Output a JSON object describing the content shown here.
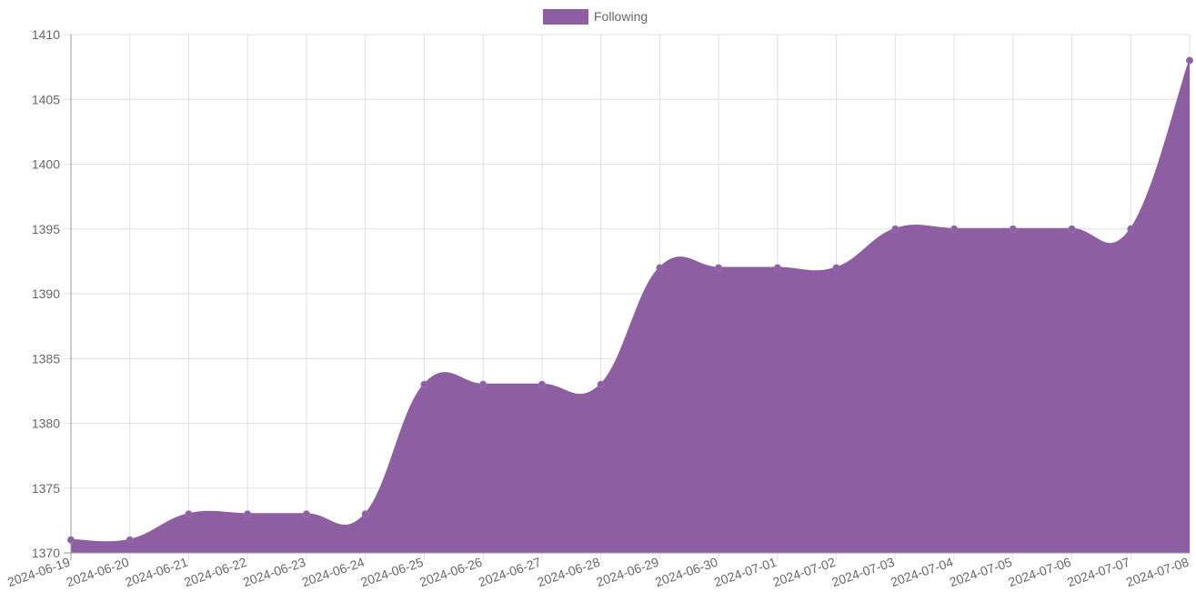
{
  "chart_data": {
    "type": "area",
    "legend_position": "top-center",
    "grid": true,
    "x": [
      "2024-06-19",
      "2024-06-20",
      "2024-06-21",
      "2024-06-22",
      "2024-06-23",
      "2024-06-24",
      "2024-06-25",
      "2024-06-26",
      "2024-06-27",
      "2024-06-28",
      "2024-06-29",
      "2024-06-30",
      "2024-07-01",
      "2024-07-02",
      "2024-07-03",
      "2024-07-04",
      "2024-07-05",
      "2024-07-06",
      "2024-07-07",
      "2024-07-08"
    ],
    "series": [
      {
        "name": "Following",
        "color": "#8e5ea2",
        "values": [
          1371,
          1371,
          1373,
          1373,
          1373,
          1373,
          1383,
          1383,
          1383,
          1383,
          1392,
          1392,
          1392,
          1392,
          1395,
          1395,
          1395,
          1395,
          1395,
          1408
        ]
      }
    ],
    "ylim": [
      1370,
      1410
    ],
    "yticks": [
      1370,
      1375,
      1380,
      1385,
      1390,
      1395,
      1400,
      1405,
      1410
    ]
  }
}
